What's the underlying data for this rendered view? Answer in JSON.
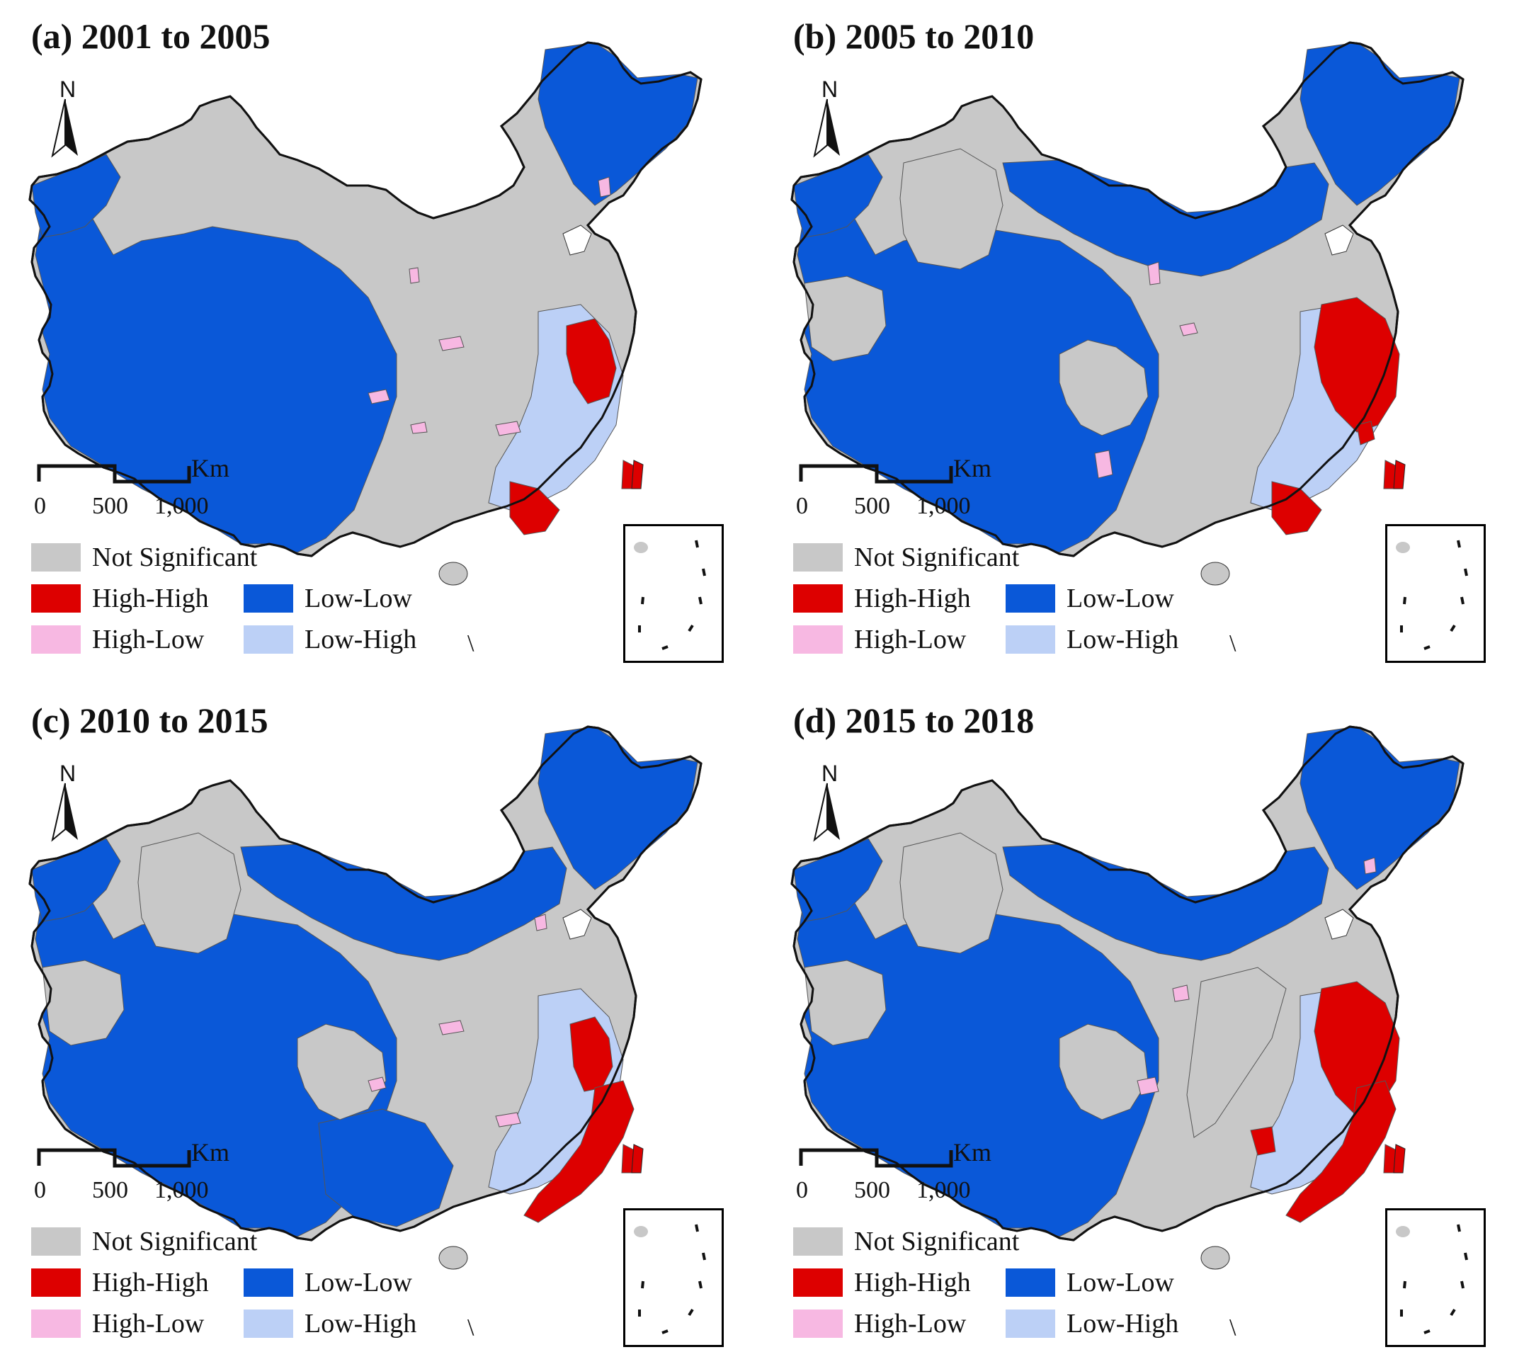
{
  "colors": {
    "not_significant": "#c8c8c8",
    "high_high": "#dd0000",
    "low_low": "#0a58d8",
    "high_low": "#f7b8e2",
    "low_high": "#bcd0f6"
  },
  "panels": [
    {
      "title": "(a) 2001 to 2005"
    },
    {
      "title": "(b) 2005 to 2010"
    },
    {
      "title": "(c) 2010 to 2015"
    },
    {
      "title": "(d) 2015 to 2018"
    }
  ],
  "north_label": "N",
  "scale": {
    "unit": "Km",
    "ticks": [
      "0",
      "500",
      "1,000"
    ]
  },
  "legend": {
    "not_significant": "Not Significant",
    "high_high": "High-High",
    "low_low": "Low-Low",
    "high_low": "High-Low",
    "low_high": "Low-High"
  }
}
